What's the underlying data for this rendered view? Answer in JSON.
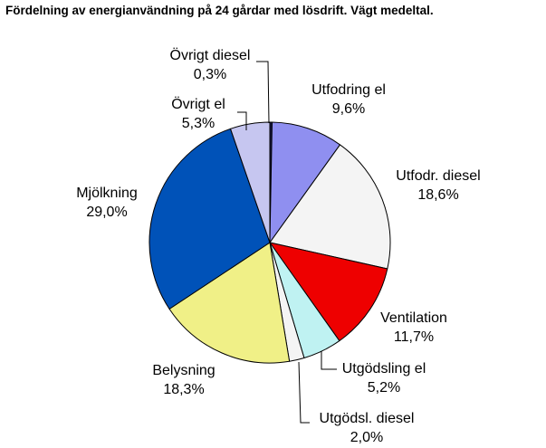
{
  "chart_data": {
    "type": "pie",
    "title": "Fördelning av energianvändning på 24 gårdar med lösdrift. Vägt medeltal.",
    "slices": [
      {
        "name": "Övrigt diesel",
        "value": 0.3,
        "value_label": "0,3%",
        "color": "#1a1a4a"
      },
      {
        "name": "Utfodring el",
        "value": 9.6,
        "value_label": "9,6%",
        "color": "#8f8ff0"
      },
      {
        "name": "Utfodr. diesel",
        "value": 18.6,
        "value_label": "18,6%",
        "color": "#f4f4f4"
      },
      {
        "name": "Ventilation",
        "value": 11.7,
        "value_label": "11,7%",
        "color": "#ee0000"
      },
      {
        "name": "Utgödsling el",
        "value": 5.2,
        "value_label": "5,2%",
        "color": "#bff2f2"
      },
      {
        "name": "Utgödsl. diesel",
        "value": 2.0,
        "value_label": "2,0%",
        "color": "#f4f4f4"
      },
      {
        "name": "Belysning",
        "value": 18.3,
        "value_label": "18,3%",
        "color": "#f0f087"
      },
      {
        "name": "Mjölkning",
        "value": 29.0,
        "value_label": "29,0%",
        "color": "#0052b8"
      },
      {
        "name": "Övrigt el",
        "value": 5.3,
        "value_label": "5,3%",
        "color": "#c6c6f0"
      }
    ],
    "start_angle_deg": 0,
    "direction": "clockwise",
    "legend": "none"
  }
}
